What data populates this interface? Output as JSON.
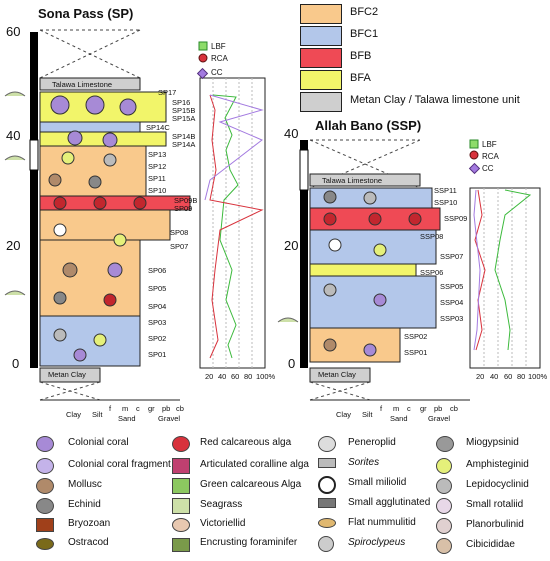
{
  "sp": {
    "title": "Sona Pass (SP)",
    "ticks": [
      "60",
      "40",
      "20",
      "0"
    ],
    "top_unit": "Talawa Limestone",
    "bottom_unit": "Metan Clay",
    "samples": [
      "SP17",
      "SP16",
      "SP15B",
      "SP15A",
      "SP14C",
      "SP14B",
      "SP14A",
      "SP13",
      "SP12",
      "SP11",
      "SP10",
      "SP09B",
      "SP09",
      "SP08",
      "SP07",
      "SP06",
      "SP05",
      "SP04",
      "SP03",
      "SP02",
      "SP01"
    ]
  },
  "ssp": {
    "title": "Allah Bano (SSP)",
    "ticks": [
      "40",
      "20",
      "0"
    ],
    "top_unit": "Talawa Limestone",
    "bottom_unit": "Metan Clay",
    "samples": [
      "SSP11",
      "SSP10",
      "SSP09",
      "SSP08",
      "SSP07",
      "SSP06",
      "SSP05",
      "SSP04",
      "SSP03",
      "SSP02",
      "SSP01"
    ]
  },
  "grain": {
    "row1": [
      "Clay",
      "Silt",
      "f",
      "m",
      "c",
      "gr",
      "pb",
      "cb"
    ],
    "row2": [
      "Sand",
      "Gravel"
    ]
  },
  "pct_axis": [
    "20",
    "40",
    "60",
    "80",
    "100%"
  ],
  "mini_legend": [
    "LBF",
    "RCA",
    "CC"
  ],
  "facies_key": [
    {
      "label": "BFC2",
      "color": "#f9c98c"
    },
    {
      "label": "BFC1",
      "color": "#b3c7ea"
    },
    {
      "label": "BFB",
      "color": "#ef4a55"
    },
    {
      "label": "BFA",
      "color": "#f2f56a"
    },
    {
      "label": "Metan Clay / Talawa limestone unit",
      "color": "#cfcfcf"
    }
  ],
  "legend": [
    [
      "Colonial coral",
      "Colonial coral fragment",
      "Mollusc",
      "Echinid",
      "Bryozoan",
      "Ostracod"
    ],
    [
      "Red calcareous alga",
      "Articulated coralline alga",
      "Green calcareous Alga",
      "Seagrass",
      "Victoriellid",
      "Encrusting foraminifer"
    ],
    [
      "Peneroplid",
      "Sorites",
      "Small miliolid",
      "Small agglutinated",
      "Flat nummulitid",
      "Spiroclypeus"
    ],
    [
      "Miogypsinid",
      "Amphisteginid",
      "Lepidocyclinid",
      "Small rotaliid",
      "Planorbulinid",
      "Cibicididae"
    ]
  ],
  "colors": {
    "lbf": "#3cba3c",
    "rca": "#d8323c",
    "cc": "#a37ae0"
  }
}
